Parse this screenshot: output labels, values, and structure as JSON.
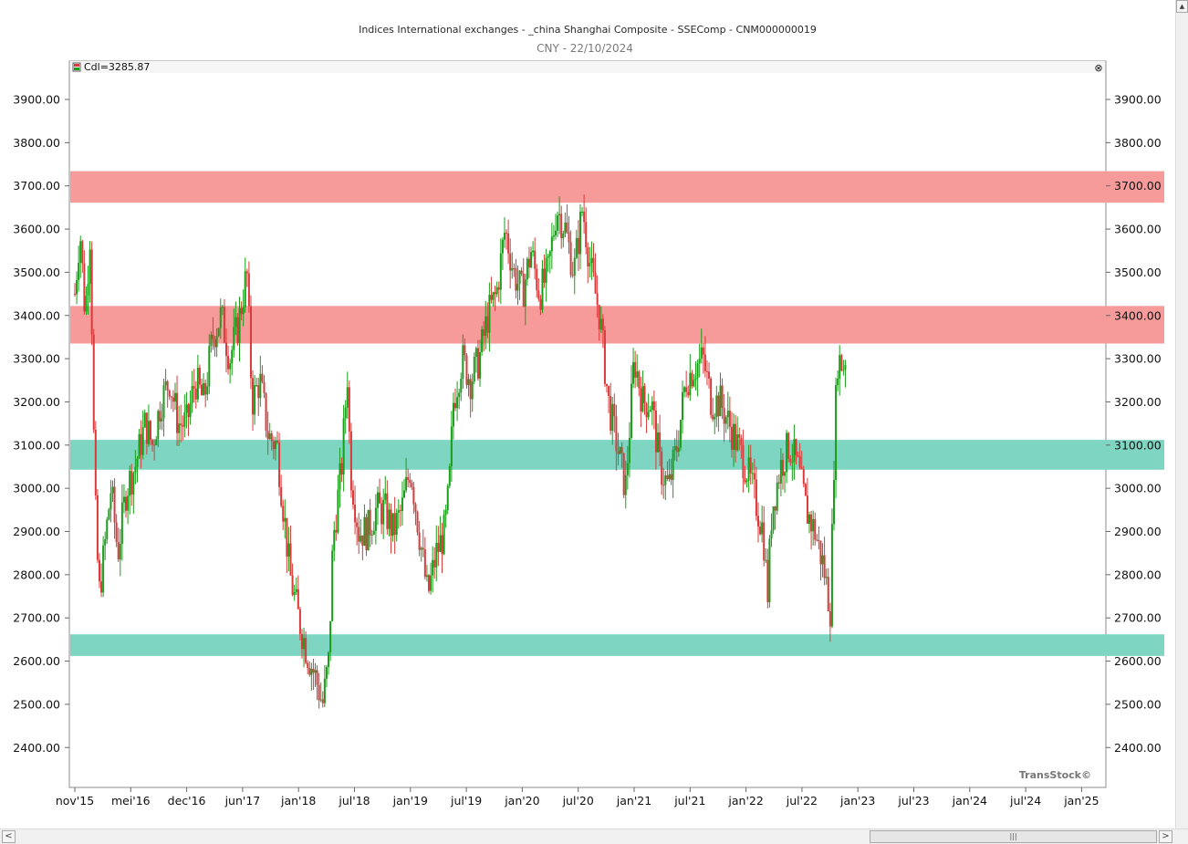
{
  "chart_data": {
    "type": "candlestick",
    "title": "Indices International exchanges - _china Shanghai Composite - SSEComp - CNM000000019",
    "subtitle": "CNY - 22/10/2024",
    "legend": {
      "label": "Cdl=3285.87",
      "color": "#d93a3a",
      "close_symbol": "⊗"
    },
    "watermark": "TransStock©",
    "ylim": [
      2320,
      3970
    ],
    "y_ticks": [
      2400,
      2500,
      2600,
      2700,
      2800,
      2900,
      3000,
      3100,
      3200,
      3300,
      3400,
      3500,
      3600,
      3700,
      3800,
      3900
    ],
    "y_tick_labels": [
      "2400.00",
      "2500.00",
      "2600.00",
      "2700.00",
      "2800.00",
      "2900.00",
      "3000.00",
      "3100.00",
      "3200.00",
      "3300.00",
      "3400.00",
      "3500.00",
      "3600.00",
      "3700.00",
      "3800.00",
      "3900.00"
    ],
    "x_tick_labels": [
      "nov'15",
      "mei'16",
      "dec'16",
      "jun'17",
      "jan'18",
      "jul'18",
      "jan'19",
      "jul'19",
      "jan'20",
      "jul'20",
      "jan'21",
      "jul'21",
      "jan'22",
      "jul'22",
      "jan'23",
      "jul'23",
      "jan'24",
      "jul'24",
      "jan'25"
    ],
    "up_color": "#1a9e1a",
    "down_color": "#d93a3a",
    "zones": [
      {
        "kind": "resistance",
        "from": 3661,
        "to": 3734,
        "color": "#f79a9a"
      },
      {
        "kind": "resistance",
        "from": 3335,
        "to": 3422,
        "color": "#f79a9a"
      },
      {
        "kind": "support",
        "from": 3043,
        "to": 3112,
        "color": "#7ed6c2"
      },
      {
        "kind": "support",
        "from": 2612,
        "to": 2662,
        "color": "#7ed6c2"
      }
    ],
    "anchors": [
      [
        0,
        3450
      ],
      [
        0.6,
        3600
      ],
      [
        1.2,
        3400
      ],
      [
        1.8,
        3600
      ],
      [
        2.3,
        3000
      ],
      [
        2.8,
        2750
      ],
      [
        3.4,
        2850
      ],
      [
        4.2,
        3000
      ],
      [
        5.0,
        2850
      ],
      [
        6.0,
        3000
      ],
      [
        7.0,
        3050
      ],
      [
        8.2,
        3150
      ],
      [
        9.0,
        3100
      ],
      [
        10.0,
        3200
      ],
      [
        11.0,
        3250
      ],
      [
        12.0,
        3150
      ],
      [
        13.0,
        3150
      ],
      [
        14.0,
        3250
      ],
      [
        15.0,
        3200
      ],
      [
        16.0,
        3350
      ],
      [
        17.0,
        3400
      ],
      [
        18.0,
        3300
      ],
      [
        19.0,
        3380
      ],
      [
        20.0,
        3500
      ],
      [
        20.6,
        3200
      ],
      [
        21.5,
        3250
      ],
      [
        22.5,
        3120
      ],
      [
        23.5,
        3100
      ],
      [
        24.0,
        3000
      ],
      [
        25.0,
        2800
      ],
      [
        26.0,
        2700
      ],
      [
        27.0,
        2620
      ],
      [
        28.0,
        2560
      ],
      [
        28.8,
        2500
      ],
      [
        29.5,
        2600
      ],
      [
        30.0,
        2880
      ],
      [
        31.0,
        3050
      ],
      [
        31.7,
        3270
      ],
      [
        32.0,
        3050
      ],
      [
        33.0,
        2900
      ],
      [
        34.0,
        2900
      ],
      [
        35.0,
        2950
      ],
      [
        36.0,
        2950
      ],
      [
        37.0,
        2900
      ],
      [
        38.0,
        2950
      ],
      [
        39.0,
        3050
      ],
      [
        40.0,
        2900
      ],
      [
        41.0,
        2750
      ],
      [
        42.0,
        2850
      ],
      [
        43.0,
        2900
      ],
      [
        43.5,
        3000
      ],
      [
        44.0,
        3200
      ],
      [
        45.0,
        3300
      ],
      [
        46.0,
        3250
      ],
      [
        47.0,
        3300
      ],
      [
        48.0,
        3400
      ],
      [
        49.0,
        3450
      ],
      [
        50.0,
        3600
      ],
      [
        51.0,
        3500
      ],
      [
        52.0,
        3450
      ],
      [
        53.0,
        3550
      ],
      [
        54.0,
        3450
      ],
      [
        55.0,
        3500
      ],
      [
        56.0,
        3650
      ],
      [
        57.0,
        3600
      ],
      [
        58.0,
        3500
      ],
      [
        59.0,
        3650
      ],
      [
        60.0,
        3500
      ],
      [
        61.0,
        3400
      ],
      [
        62.0,
        3200
      ],
      [
        63.0,
        3100
      ],
      [
        64.0,
        3000
      ],
      [
        65.0,
        3300
      ],
      [
        66.0,
        3200
      ],
      [
        67.0,
        3200
      ],
      [
        68.0,
        3050
      ],
      [
        69.0,
        3000
      ],
      [
        70.0,
        3100
      ],
      [
        71.0,
        3250
      ],
      [
        72.0,
        3280
      ],
      [
        73.0,
        3300
      ],
      [
        74.0,
        3200
      ],
      [
        75.0,
        3200
      ],
      [
        76.0,
        3150
      ],
      [
        77.0,
        3100
      ],
      [
        78.0,
        3050
      ],
      [
        79.0,
        2980
      ],
      [
        80.0,
        2900
      ],
      [
        80.5,
        2750
      ],
      [
        81.0,
        2950
      ],
      [
        82.0,
        3050
      ],
      [
        83.0,
        3100
      ],
      [
        84.0,
        3050
      ],
      [
        85.0,
        2950
      ],
      [
        86.0,
        2900
      ],
      [
        87.0,
        2820
      ],
      [
        87.8,
        2720
      ],
      [
        88.2,
        3050
      ],
      [
        88.6,
        3300
      ],
      [
        89.6,
        3280
      ]
    ],
    "months": 108,
    "notes_final_close": 3285.87
  },
  "scrollbar": {
    "up_arrow": "▲",
    "left_arrow": "<",
    "right_arrow": ">",
    "thumb_grip": "|||"
  }
}
